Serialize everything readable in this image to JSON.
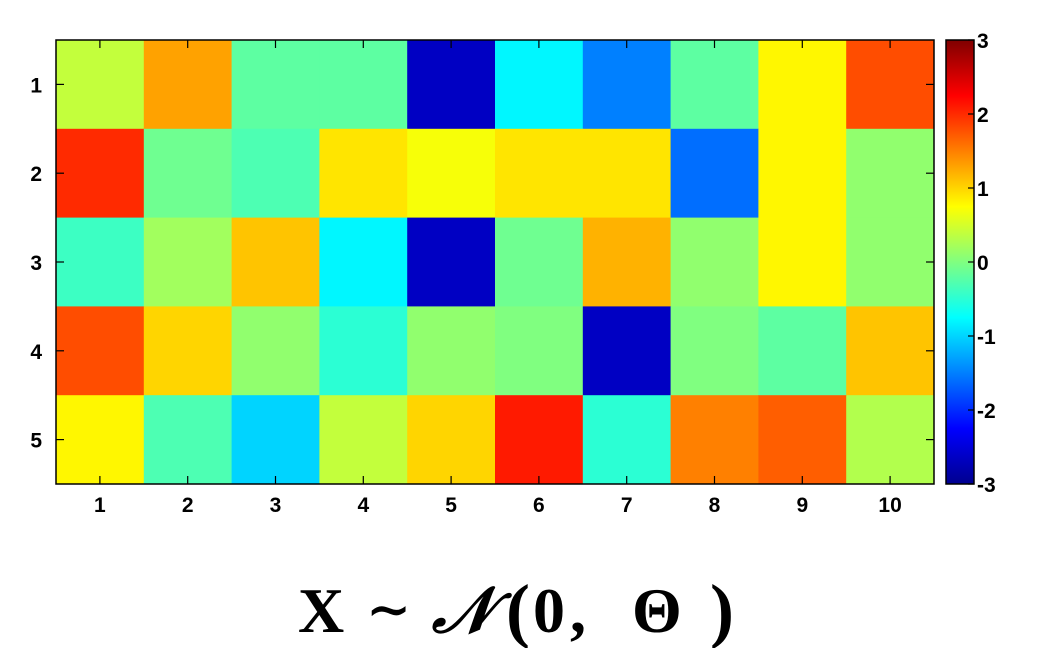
{
  "chart_data": {
    "type": "heatmap",
    "title": "",
    "xlabel": "",
    "ylabel": "",
    "colormap": "jet",
    "rows": [
      "1",
      "2",
      "3",
      "4",
      "5"
    ],
    "columns": [
      "1",
      "2",
      "3",
      "4",
      "5",
      "6",
      "7",
      "8",
      "9",
      "10"
    ],
    "values": [
      [
        0.4,
        1.3,
        -0.2,
        -0.2,
        -2.6,
        -0.8,
        -1.5,
        -0.2,
        0.8,
        1.8
      ],
      [
        2.0,
        -0.1,
        -0.3,
        0.9,
        0.7,
        0.9,
        0.9,
        -1.6,
        0.8,
        0.1
      ],
      [
        -0.4,
        0.2,
        1.1,
        -0.8,
        -2.6,
        -0.1,
        1.2,
        0.1,
        0.8,
        0.1
      ],
      [
        1.8,
        1.0,
        0.1,
        -0.5,
        0.1,
        0.0,
        -2.6,
        0.0,
        -0.2,
        1.1
      ],
      [
        0.8,
        -0.3,
        -1.0,
        0.4,
        1.0,
        2.1,
        -0.5,
        1.5,
        1.7,
        0.3
      ]
    ],
    "colorbar": {
      "min": -3,
      "max": 3,
      "ticks": [
        "3",
        "2",
        "1",
        "0",
        "-1",
        "-2",
        "-3"
      ]
    }
  },
  "caption": {
    "bold_x": "X",
    "tilde": "∼",
    "script_n": "𝒩",
    "open_paren": "(",
    "zero": "0",
    "comma": ",",
    "theta": "Θ",
    "close_paren": ")"
  }
}
